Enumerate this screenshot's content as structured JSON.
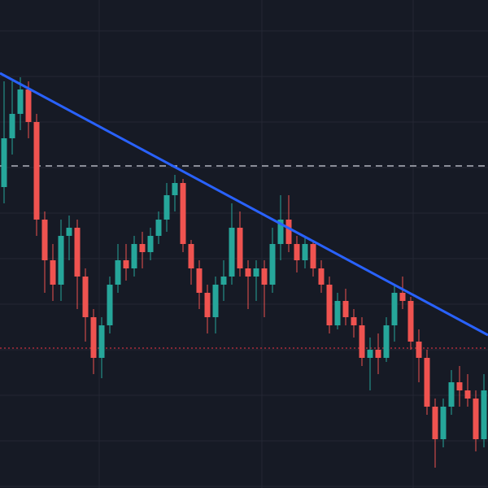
{
  "chart_data": {
    "type": "candlestick",
    "open": [
      370,
      430,
      460,
      490,
      450,
      330,
      280,
      250,
      310,
      320,
      260,
      210,
      160,
      200,
      250,
      280,
      270,
      300,
      290,
      310,
      330,
      360,
      375,
      300,
      270,
      240,
      210,
      250,
      260,
      320,
      270,
      260,
      270,
      250,
      300,
      330,
      300,
      280,
      300,
      270,
      250,
      200,
      230,
      210,
      200,
      160,
      170,
      160,
      200,
      240,
      230,
      180,
      160,
      100,
      60,
      100,
      130,
      120,
      110,
      60
    ],
    "high": [
      500,
      500,
      505,
      500,
      460,
      340,
      300,
      330,
      335,
      330,
      270,
      220,
      210,
      260,
      300,
      300,
      310,
      315,
      320,
      340,
      375,
      385,
      380,
      305,
      280,
      250,
      260,
      280,
      350,
      340,
      280,
      280,
      280,
      320,
      360,
      360,
      310,
      310,
      305,
      280,
      260,
      240,
      245,
      220,
      210,
      185,
      190,
      210,
      250,
      260,
      235,
      195,
      170,
      110,
      110,
      145,
      150,
      140,
      120,
      140
    ],
    "low": [
      350,
      410,
      440,
      430,
      310,
      240,
      230,
      230,
      280,
      220,
      180,
      140,
      135,
      190,
      240,
      255,
      260,
      270,
      280,
      300,
      315,
      340,
      290,
      250,
      220,
      190,
      190,
      230,
      250,
      260,
      220,
      230,
      210,
      240,
      280,
      290,
      265,
      270,
      260,
      240,
      190,
      195,
      200,
      185,
      150,
      120,
      140,
      155,
      180,
      220,
      170,
      130,
      90,
      25,
      50,
      90,
      100,
      100,
      45,
      50
    ],
    "close": [
      430,
      460,
      490,
      450,
      330,
      280,
      250,
      310,
      320,
      260,
      210,
      160,
      200,
      250,
      280,
      270,
      300,
      290,
      310,
      330,
      360,
      375,
      300,
      270,
      240,
      210,
      250,
      260,
      320,
      270,
      260,
      270,
      250,
      300,
      330,
      300,
      280,
      300,
      270,
      250,
      200,
      230,
      210,
      200,
      160,
      170,
      160,
      200,
      240,
      230,
      180,
      160,
      100,
      60,
      100,
      130,
      120,
      110,
      60,
      120
    ],
    "up_color": "#26a69a",
    "down_color": "#ef5350",
    "xlim": [
      -0.5,
      59.5
    ],
    "xticks": [
      11.7,
      31.7,
      50.3
    ],
    "ylim": [
      0,
      600
    ],
    "yticks": [
      2,
      58,
      114,
      170,
      226,
      282,
      338,
      394,
      450,
      506,
      562
    ],
    "grid": true,
    "trendline": {
      "values": [
        510,
        188
      ],
      "color": "#2962ff"
    },
    "hlines": [
      {
        "value": 396,
        "color": "#b2b5be",
        "style": "dashed"
      },
      {
        "value": 172,
        "color": "#f23645",
        "style": "dotted"
      }
    ]
  }
}
